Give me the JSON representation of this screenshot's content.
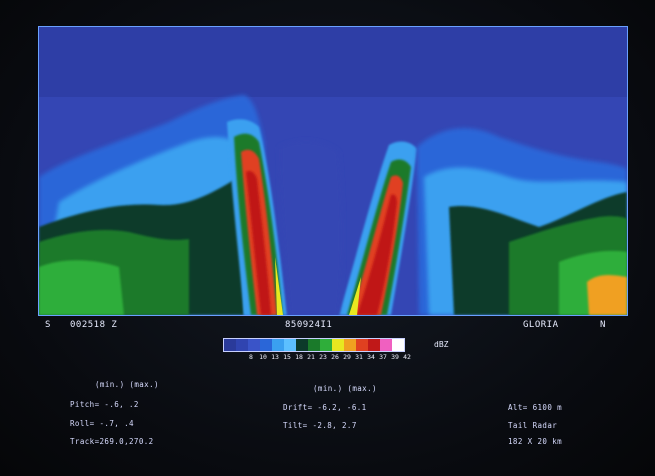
{
  "direction": {
    "left": "S",
    "right": "N"
  },
  "header": {
    "time": "002518 Z",
    "flight_id": "850924I1",
    "storm": "GLORIA"
  },
  "scale": {
    "unit": "dBZ",
    "ticks": [
      "8",
      "10",
      "13",
      "15",
      "18",
      "21",
      "23",
      "26",
      "29",
      "31",
      "34",
      "37",
      "39",
      "42"
    ],
    "colors": [
      "#2a3a9a",
      "#3044b0",
      "#3a54c8",
      "#2a66d8",
      "#3aa0f0",
      "#5cc0ff",
      "#0c3a2a",
      "#1a7a2a",
      "#2fae3a",
      "#e8e820",
      "#f0a020",
      "#e04020",
      "#c01818",
      "#f060c0",
      "#ffffff"
    ]
  },
  "readouts": {
    "left_header": "(min.) (max.)",
    "pitch": "Pitch= -.6,   .2",
    "roll": "Roll=  -.7,   .4",
    "track": "Track=269.0,270.2",
    "mid_header": "(min.) (max.)",
    "drift": "Drift= -6.2, -6.1",
    "tilt": "Tilt=  -2.8,  2.7",
    "alt": "Alt= 6100 m",
    "radar": "Tail Radar",
    "range": "182 X  20 km"
  }
}
